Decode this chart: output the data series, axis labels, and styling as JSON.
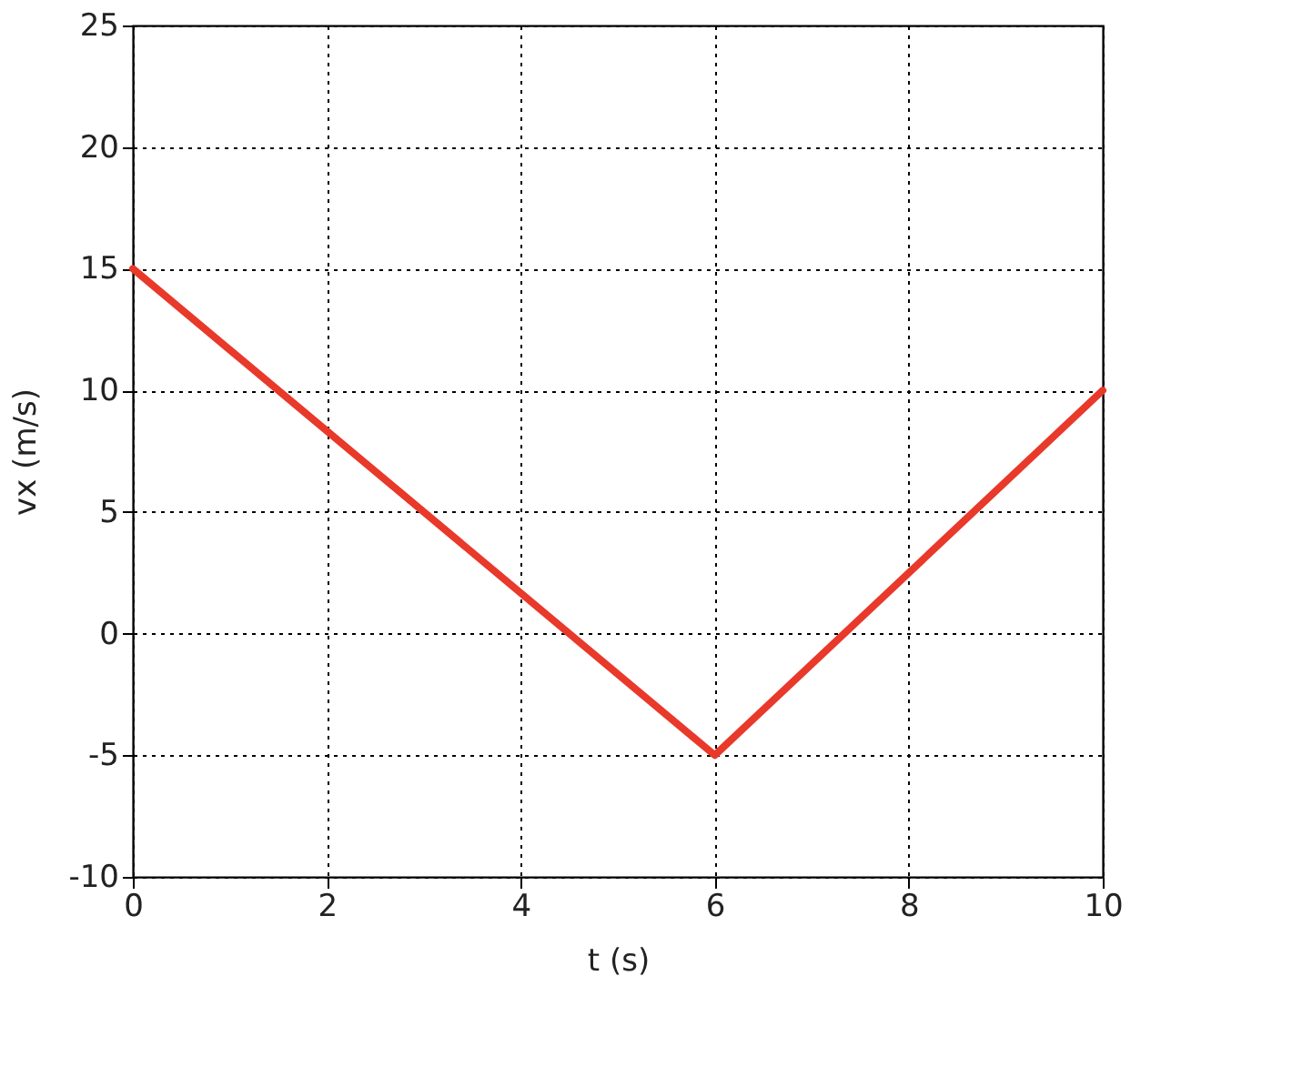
{
  "chart_data": {
    "type": "line",
    "xlabel": "t (s)",
    "ylabel": "vx (m/s)",
    "x": [
      0,
      6,
      10
    ],
    "series": [
      {
        "color": "#e8392a",
        "values": [
          15,
          -5,
          10
        ]
      }
    ],
    "xlim": [
      0,
      10
    ],
    "xticks": [
      0,
      2,
      4,
      6,
      8,
      10
    ],
    "ylim": [
      -10,
      25
    ],
    "yticks": [
      -10,
      -5,
      0,
      5,
      10,
      15,
      20,
      25
    ],
    "grid": true,
    "marker": "none",
    "line_style": "solid"
  }
}
